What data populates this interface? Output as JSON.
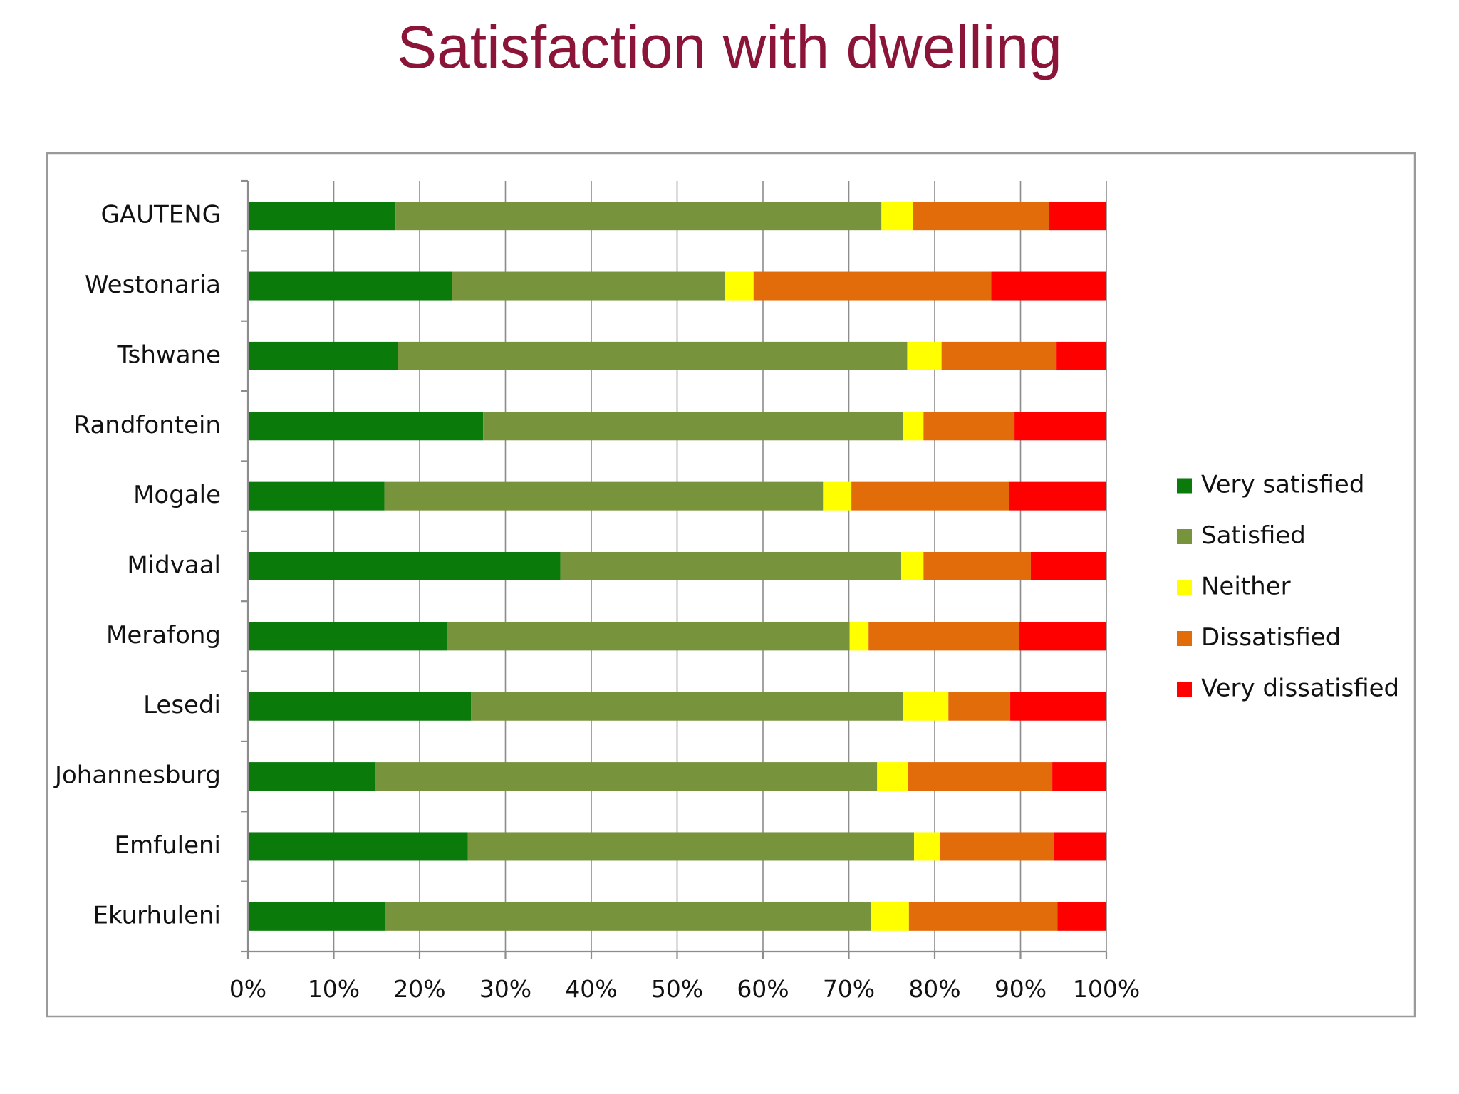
{
  "chart_data": {
    "type": "bar",
    "orientation": "horizontal",
    "stacked": true,
    "title": "Satisfaction with dwelling",
    "xlim": [
      0,
      100
    ],
    "xticks": [
      "0%",
      "10%",
      "20%",
      "30%",
      "40%",
      "50%",
      "60%",
      "70%",
      "80%",
      "90%",
      "100%"
    ],
    "grid": true,
    "legend_position": "right",
    "categories": [
      "GAUTENG",
      "Westonaria",
      "Tshwane",
      "Randfontein",
      "Mogale",
      "Midvaal",
      "Merafong",
      "Lesedi",
      "Johannesburg",
      "Emfuleni",
      "Ekurhuleni"
    ],
    "series": [
      {
        "name": "Very satisfied",
        "color": "#0a7a0a",
        "values": [
          17.2,
          23.8,
          17.5,
          27.4,
          15.9,
          36.4,
          23.2,
          26.0,
          14.8,
          25.6,
          16.0
        ]
      },
      {
        "name": "Satisfied",
        "color": "#77933c",
        "values": [
          56.6,
          31.8,
          59.3,
          48.9,
          51.1,
          39.7,
          46.9,
          50.3,
          58.5,
          52.0,
          56.6
        ]
      },
      {
        "name": "Neither",
        "color": "#ffff00",
        "values": [
          3.7,
          3.3,
          4.0,
          2.4,
          3.3,
          2.6,
          2.2,
          5.3,
          3.6,
          3.0,
          4.4
        ]
      },
      {
        "name": "Dissatisfied",
        "color": "#e36c0a",
        "values": [
          15.8,
          27.7,
          13.4,
          10.6,
          18.4,
          12.5,
          17.5,
          7.2,
          16.8,
          13.3,
          17.3
        ]
      },
      {
        "name": "Very dissatisfied",
        "color": "#ff0000",
        "values": [
          6.7,
          13.4,
          5.8,
          10.7,
          11.3,
          8.8,
          10.2,
          11.2,
          6.3,
          6.1,
          5.7
        ]
      }
    ]
  }
}
